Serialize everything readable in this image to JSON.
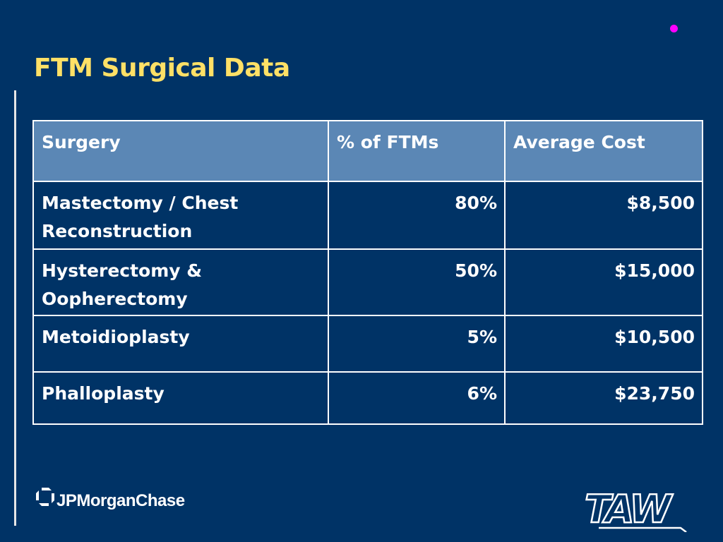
{
  "slide": {
    "title": "FTM Surgical Data",
    "accent_colors": {
      "background": "#003366",
      "title": "#ffe066",
      "header_fill": "#5b87b5",
      "bullet": "#ff00ff"
    }
  },
  "table": {
    "headers": [
      "Surgery",
      "% of FTMs",
      "Average Cost"
    ],
    "rows": [
      {
        "surgery_line1": "Mastectomy / Chest",
        "surgery_line2": "Reconstruction",
        "percent": "80%",
        "cost": "$8,500"
      },
      {
        "surgery_line1": "Hysterectomy &",
        "surgery_line2": "Oopherectomy",
        "percent": "50%",
        "cost": "$15,000"
      },
      {
        "surgery_line1": "Metoidioplasty",
        "percent": "5%",
        "cost": "$10,500"
      },
      {
        "surgery_line1": "Phalloplasty",
        "percent": "6%",
        "cost": "$23,750"
      }
    ]
  },
  "footer": {
    "left_logo_text": "JPMorganChase",
    "right_logo_text": "TAW"
  }
}
